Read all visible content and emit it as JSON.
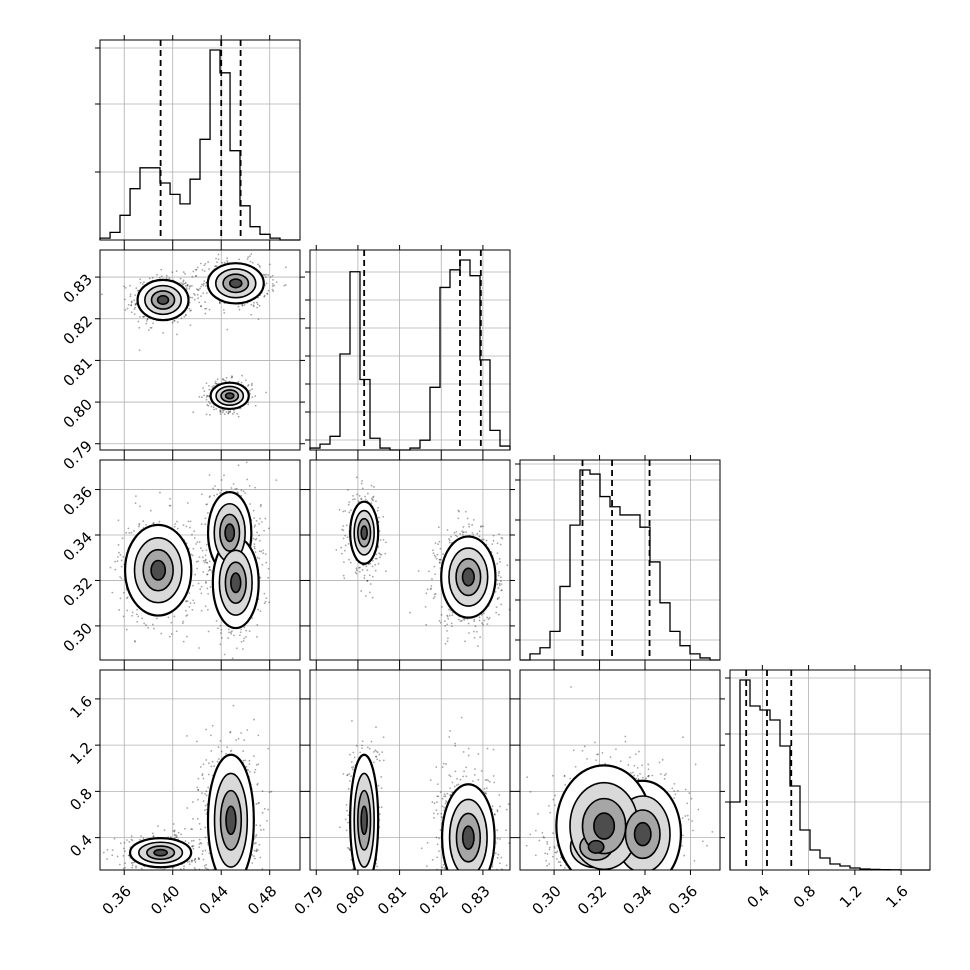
{
  "chart_data": {
    "type": "corner",
    "title": "",
    "grid": true,
    "colors": {
      "ink": "#000000",
      "grid": "#b0b0b0",
      "background": "#ffffff"
    },
    "parameters": [
      {
        "range": [
          0.34,
          0.505
        ],
        "ticks": [
          0.36,
          0.4,
          0.44,
          0.48
        ],
        "tick_labels": [
          "0.36",
          "0.40",
          "0.44",
          "0.48"
        ],
        "quantiles": [
          0.39,
          0.44,
          0.456
        ]
      },
      {
        "range": [
          0.7885,
          0.8365
        ],
        "ticks": [
          0.79,
          0.8,
          0.81,
          0.82,
          0.83
        ],
        "tick_labels": [
          "0.79",
          "0.80",
          "0.81",
          "0.82",
          "0.83"
        ],
        "quantiles": [
          0.8015,
          0.8245,
          0.8295
        ]
      },
      {
        "range": [
          0.285,
          0.373
        ],
        "ticks": [
          0.3,
          0.32,
          0.34,
          0.36
        ],
        "tick_labels": [
          "0.30",
          "0.32",
          "0.34",
          "0.36"
        ],
        "quantiles": [
          0.3125,
          0.3255,
          0.342
        ]
      },
      {
        "range": [
          0.12,
          1.85
        ],
        "ticks": [
          0.4,
          0.8,
          1.2,
          1.6
        ],
        "tick_labels": [
          "0.4",
          "0.8",
          "1.2",
          "1.6"
        ],
        "quantiles": [
          0.26,
          0.44,
          0.65
        ]
      }
    ],
    "histograms": [
      {
        "param": 0,
        "edges": [
          0.34,
          0.3483,
          0.3565,
          0.3648,
          0.373,
          0.3813,
          0.3895,
          0.3978,
          0.406,
          0.4143,
          0.4225,
          0.4308,
          0.439,
          0.4473,
          0.4555,
          0.4638,
          0.472,
          0.4803,
          0.4885,
          0.4968,
          0.505
        ],
        "counts": [
          0.01,
          0.04,
          0.13,
          0.27,
          0.38,
          0.38,
          0.3,
          0.24,
          0.19,
          0.32,
          0.53,
          1.0,
          0.88,
          0.47,
          0.18,
          0.07,
          0.03,
          0.01,
          0.0,
          0.0
        ]
      },
      {
        "param": 1,
        "edges": [
          0.7885,
          0.7909,
          0.7933,
          0.7957,
          0.7981,
          0.8005,
          0.8029,
          0.8053,
          0.8077,
          0.8101,
          0.8125,
          0.8149,
          0.8173,
          0.8197,
          0.8221,
          0.8245,
          0.8269,
          0.8293,
          0.8317,
          0.8341,
          0.8365
        ],
        "counts": [
          0.01,
          0.03,
          0.07,
          0.49,
          0.91,
          0.36,
          0.06,
          0.01,
          0.0,
          0.0,
          0.01,
          0.05,
          0.32,
          0.83,
          0.92,
          0.97,
          0.89,
          0.46,
          0.1,
          0.02
        ]
      },
      {
        "param": 2,
        "edges": [
          0.285,
          0.2894,
          0.2938,
          0.2982,
          0.3026,
          0.307,
          0.3114,
          0.3158,
          0.3202,
          0.3246,
          0.329,
          0.3334,
          0.3378,
          0.3422,
          0.3466,
          0.351,
          0.3554,
          0.3598,
          0.3642,
          0.3686,
          0.373
        ],
        "counts": [
          0.0,
          0.03,
          0.06,
          0.14,
          0.36,
          0.66,
          0.93,
          0.91,
          0.8,
          0.75,
          0.71,
          0.71,
          0.65,
          0.48,
          0.28,
          0.14,
          0.07,
          0.03,
          0.01,
          0.0
        ]
      },
      {
        "param": 3,
        "edges": [
          0.12,
          0.2065,
          0.293,
          0.3795,
          0.466,
          0.5525,
          0.639,
          0.7255,
          0.812,
          0.8985,
          0.985,
          1.0715,
          1.158,
          1.2445,
          1.331,
          1.4175,
          1.504,
          1.5905,
          1.677,
          1.7635,
          1.85
        ],
        "counts": [
          0.34,
          0.95,
          0.82,
          0.8,
          0.75,
          0.62,
          0.42,
          0.2,
          0.1,
          0.06,
          0.03,
          0.02,
          0.01,
          0.005,
          0.003,
          0.002,
          0.001,
          0.0,
          0.0,
          0.0
        ]
      }
    ],
    "joint_panels": [
      {
        "x": 0,
        "y": 1,
        "clusters": [
          {
            "cx": 0.392,
            "cy": 0.8245,
            "sx": 0.01,
            "sy": 0.0023,
            "w": 1.0
          },
          {
            "cx": 0.452,
            "cy": 0.8285,
            "sx": 0.011,
            "sy": 0.0023,
            "w": 1.0
          },
          {
            "cx": 0.447,
            "cy": 0.8015,
            "sx": 0.0075,
            "sy": 0.0015,
            "w": 0.8
          }
        ]
      },
      {
        "x": 0,
        "y": 2,
        "clusters": [
          {
            "cx": 0.388,
            "cy": 0.3245,
            "sx": 0.013,
            "sy": 0.0095,
            "w": 1.0
          },
          {
            "cx": 0.447,
            "cy": 0.341,
            "sx": 0.0085,
            "sy": 0.0085,
            "w": 1.0
          },
          {
            "cx": 0.452,
            "cy": 0.319,
            "sx": 0.009,
            "sy": 0.0095,
            "w": 1.0
          }
        ]
      },
      {
        "x": 1,
        "y": 2,
        "clusters": [
          {
            "cx": 0.8015,
            "cy": 0.341,
            "sx": 0.0016,
            "sy": 0.0065,
            "w": 0.9
          },
          {
            "cx": 0.8265,
            "cy": 0.3215,
            "sx": 0.0031,
            "sy": 0.0085,
            "w": 1.4
          }
        ]
      },
      {
        "x": 0,
        "y": 3,
        "clusters": [
          {
            "cx": 0.39,
            "cy": 0.27,
            "sx": 0.012,
            "sy": 0.06,
            "w": 1.0
          },
          {
            "cx": 0.448,
            "cy": 0.55,
            "sx": 0.009,
            "sy": 0.27,
            "w": 1.6
          }
        ]
      },
      {
        "x": 1,
        "y": 3,
        "clusters": [
          {
            "cx": 0.8015,
            "cy": 0.55,
            "sx": 0.0016,
            "sy": 0.27,
            "w": 0.9
          },
          {
            "cx": 0.8265,
            "cy": 0.4,
            "sx": 0.003,
            "sy": 0.22,
            "w": 1.5
          }
        ]
      },
      {
        "x": 2,
        "y": 3,
        "clusters": [
          {
            "cx": 0.3185,
            "cy": 0.32,
            "sx": 0.0075,
            "sy": 0.12,
            "w": 1.0
          },
          {
            "cx": 0.339,
            "cy": 0.43,
            "sx": 0.008,
            "sy": 0.22,
            "w": 1.0
          },
          {
            "cx": 0.322,
            "cy": 0.5,
            "sx": 0.01,
            "sy": 0.25,
            "w": 0.8
          }
        ]
      }
    ]
  }
}
